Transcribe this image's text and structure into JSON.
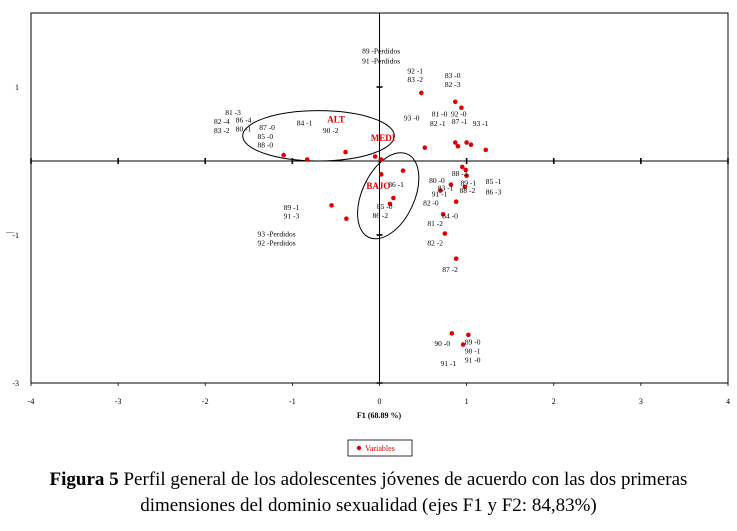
{
  "chart_data": {
    "type": "scatter",
    "xlabel": "F1 (68.89 %)",
    "ylabel": "....",
    "xlim": [
      -4,
      4
    ],
    "ylim": [
      -3,
      2
    ],
    "x_ticks": [
      "-4",
      "-3",
      "-2",
      "-1",
      "0",
      "1",
      "2",
      "3",
      "4"
    ],
    "y_ticks": [
      "1",
      "-1",
      "-3"
    ],
    "grid": false,
    "legend": {
      "position": "bottom-center",
      "entries": [
        "Variables"
      ]
    },
    "series": [
      {
        "name": "Variables",
        "color": "#e00000",
        "points": [
          {
            "x": 0.48,
            "y": 0.92
          },
          {
            "x": 0.52,
            "y": 0.18
          },
          {
            "x": 0.87,
            "y": 0.8
          },
          {
            "x": 0.94,
            "y": 0.72
          },
          {
            "x": 0.87,
            "y": 0.25
          },
          {
            "x": 0.9,
            "y": 0.2
          },
          {
            "x": 1.0,
            "y": 0.25
          },
          {
            "x": 1.05,
            "y": 0.22
          },
          {
            "x": 1.22,
            "y": 0.15
          },
          {
            "x": -1.1,
            "y": 0.08
          },
          {
            "x": -0.83,
            "y": 0.02
          },
          {
            "x": -0.39,
            "y": 0.12
          },
          {
            "x": -0.05,
            "y": 0.06
          },
          {
            "x": 0.02,
            "y": 0.02
          },
          {
            "x": 0.02,
            "y": -0.18
          },
          {
            "x": 0.27,
            "y": -0.13
          },
          {
            "x": 0.95,
            "y": -0.08
          },
          {
            "x": 0.99,
            "y": -0.12
          },
          {
            "x": 1.0,
            "y": -0.2
          },
          {
            "x": 0.82,
            "y": -0.32
          },
          {
            "x": 0.98,
            "y": -0.35
          },
          {
            "x": 0.7,
            "y": -0.4
          },
          {
            "x": 0.88,
            "y": -0.55
          },
          {
            "x": 0.16,
            "y": -0.5
          },
          {
            "x": 0.12,
            "y": -0.58
          },
          {
            "x": -0.55,
            "y": -0.6
          },
          {
            "x": -0.38,
            "y": -0.78
          },
          {
            "x": 0.73,
            "y": -0.72
          },
          {
            "x": 0.75,
            "y": -0.98
          },
          {
            "x": 0.88,
            "y": -1.32
          },
          {
            "x": 0.83,
            "y": -2.33
          },
          {
            "x": 1.02,
            "y": -2.35
          },
          {
            "x": 0.96,
            "y": -2.48
          }
        ]
      }
    ],
    "point_labels": [
      {
        "text": "89 -Perdidos",
        "x": -0.2,
        "y": 1.45
      },
      {
        "text": "91 -Perdidos",
        "x": -0.2,
        "y": 1.32
      },
      {
        "text": "92 -1",
        "x": 0.32,
        "y": 1.18
      },
      {
        "text": "83 -2",
        "x": 0.32,
        "y": 1.07
      },
      {
        "text": "83 -0",
        "x": 0.75,
        "y": 1.12
      },
      {
        "text": "82 -3",
        "x": 0.75,
        "y": 1.0
      },
      {
        "text": "93 -0",
        "x": 0.28,
        "y": 0.55
      },
      {
        "text": "81 -0",
        "x": 0.6,
        "y": 0.6
      },
      {
        "text": "92 -0",
        "x": 0.82,
        "y": 0.6
      },
      {
        "text": "82 -1",
        "x": 0.58,
        "y": 0.47
      },
      {
        "text": "87 -1",
        "x": 0.83,
        "y": 0.5
      },
      {
        "text": "93 -1",
        "x": 1.07,
        "y": 0.47
      },
      {
        "text": "81 -3",
        "x": -1.77,
        "y": 0.62
      },
      {
        "text": "82 -4",
        "x": -1.9,
        "y": 0.5
      },
      {
        "text": "86 -4",
        "x": -1.65,
        "y": 0.52
      },
      {
        "text": "83 -2",
        "x": -1.9,
        "y": 0.38
      },
      {
        "text": "80 -1",
        "x": -1.65,
        "y": 0.4
      },
      {
        "text": "87 -0",
        "x": -1.38,
        "y": 0.42
      },
      {
        "text": "85 -0",
        "x": -1.4,
        "y": 0.3
      },
      {
        "text": "88 -0",
        "x": -1.4,
        "y": 0.18
      },
      {
        "text": "84 -1",
        "x": -0.95,
        "y": 0.48
      },
      {
        "text": "90 -2",
        "x": -0.65,
        "y": 0.38
      },
      {
        "text": "86 -1",
        "x": 0.1,
        "y": -0.35
      },
      {
        "text": "88 -3",
        "x": 0.83,
        "y": -0.2
      },
      {
        "text": "80 -0",
        "x": 0.57,
        "y": -0.3
      },
      {
        "text": "83 -1",
        "x": 0.67,
        "y": -0.4
      },
      {
        "text": "89 -1",
        "x": 0.93,
        "y": -0.33
      },
      {
        "text": "88 -2",
        "x": 0.92,
        "y": -0.43
      },
      {
        "text": "85 -1",
        "x": 1.22,
        "y": -0.31
      },
      {
        "text": "86 -3",
        "x": 1.22,
        "y": -0.45
      },
      {
        "text": "91 -1",
        "x": 0.6,
        "y": -0.48
      },
      {
        "text": "82 -0",
        "x": 0.5,
        "y": -0.6
      },
      {
        "text": "85 -0",
        "x": -0.03,
        "y": -0.65
      },
      {
        "text": "86 -2",
        "x": -0.08,
        "y": -0.77
      },
      {
        "text": "84 -0",
        "x": 0.72,
        "y": -0.78
      },
      {
        "text": "81 -2",
        "x": 0.55,
        "y": -0.88
      },
      {
        "text": "89 -1",
        "x": -1.1,
        "y": -0.66
      },
      {
        "text": "91 -3",
        "x": -1.1,
        "y": -0.78
      },
      {
        "text": "93 -Perdidos",
        "x": -1.4,
        "y": -1.02
      },
      {
        "text": "92 -Perdidos",
        "x": -1.4,
        "y": -1.14
      },
      {
        "text": "82 -2",
        "x": 0.55,
        "y": -1.14
      },
      {
        "text": "87 -2",
        "x": 0.72,
        "y": -1.5
      },
      {
        "text": "90 -0",
        "x": 0.63,
        "y": -2.5
      },
      {
        "text": "89 -0",
        "x": 0.98,
        "y": -2.48
      },
      {
        "text": "90 -1",
        "x": 0.98,
        "y": -2.6
      },
      {
        "text": "91 -0",
        "x": 0.98,
        "y": -2.72
      },
      {
        "text": "91 -1",
        "x": 0.7,
        "y": -2.77
      }
    ],
    "group_labels": [
      {
        "text": "ALT",
        "x": -0.6,
        "y": 0.52,
        "color": "#e00000"
      },
      {
        "text": "MEDI",
        "x": -0.1,
        "y": 0.27,
        "color": "#e00000"
      },
      {
        "text": "BAJO",
        "x": -0.15,
        "y": -0.38,
        "color": "#e00000"
      }
    ],
    "ellipses": [
      {
        "cx": -0.7,
        "cy": 0.34,
        "rx": 0.87,
        "ry": 0.34,
        "rotate": 0
      },
      {
        "cx": 0.1,
        "cy": -0.47,
        "rx": 0.3,
        "ry": 0.62,
        "rotate": 25
      }
    ]
  },
  "caption": {
    "label": "Figura 5",
    "text": " Perfil general de los adolescentes jóvenes de acuerdo con las dos primeras dimensiones del dominio sexualidad (ejes F1 y F2: 84,83%)"
  }
}
